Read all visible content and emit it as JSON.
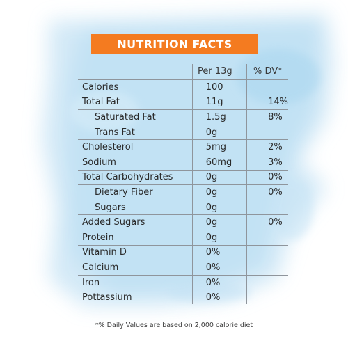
{
  "title": "NUTRITION FACTS",
  "header": {
    "per": "Per 13g",
    "dv": "% DV*"
  },
  "rows": [
    {
      "name": "Calories",
      "amount": "100",
      "dv": "",
      "indent": false
    },
    {
      "name": "Total Fat",
      "amount": "11g",
      "dv": "14%",
      "indent": false
    },
    {
      "name": "Saturated Fat",
      "amount": "1.5g",
      "dv": "8%",
      "indent": true
    },
    {
      "name": "Trans Fat",
      "amount": "0g",
      "dv": "",
      "indent": true
    },
    {
      "name": "Cholesterol",
      "amount": "5mg",
      "dv": "2%",
      "indent": false
    },
    {
      "name": "Sodium",
      "amount": "60mg",
      "dv": "3%",
      "indent": false
    },
    {
      "name": "Total Carbohydrates",
      "amount": "0g",
      "dv": "0%",
      "indent": false
    },
    {
      "name": "Dietary Fiber",
      "amount": "0g",
      "dv": "0%",
      "indent": true
    },
    {
      "name": "Sugars",
      "amount": "0g",
      "dv": "",
      "indent": true
    },
    {
      "name": "Added Sugars",
      "amount": "0g",
      "dv": "0%",
      "indent": false
    },
    {
      "name": "Protein",
      "amount": "0g",
      "dv": "",
      "indent": false
    },
    {
      "name": "Vitamin D",
      "amount": "0%",
      "dv": "",
      "indent": false
    },
    {
      "name": "Calcium",
      "amount": "0%",
      "dv": "",
      "indent": false
    },
    {
      "name": "Iron",
      "amount": "0%",
      "dv": "",
      "indent": false
    },
    {
      "name": "Pottassium",
      "amount": "0%",
      "dv": "",
      "indent": false
    }
  ],
  "footnote": "*% Daily Values are based on 2,000 calorie diet",
  "colors": {
    "accent": "#f47b20",
    "watercolor": "#bfe0f3",
    "rule": "#8f959c"
  }
}
